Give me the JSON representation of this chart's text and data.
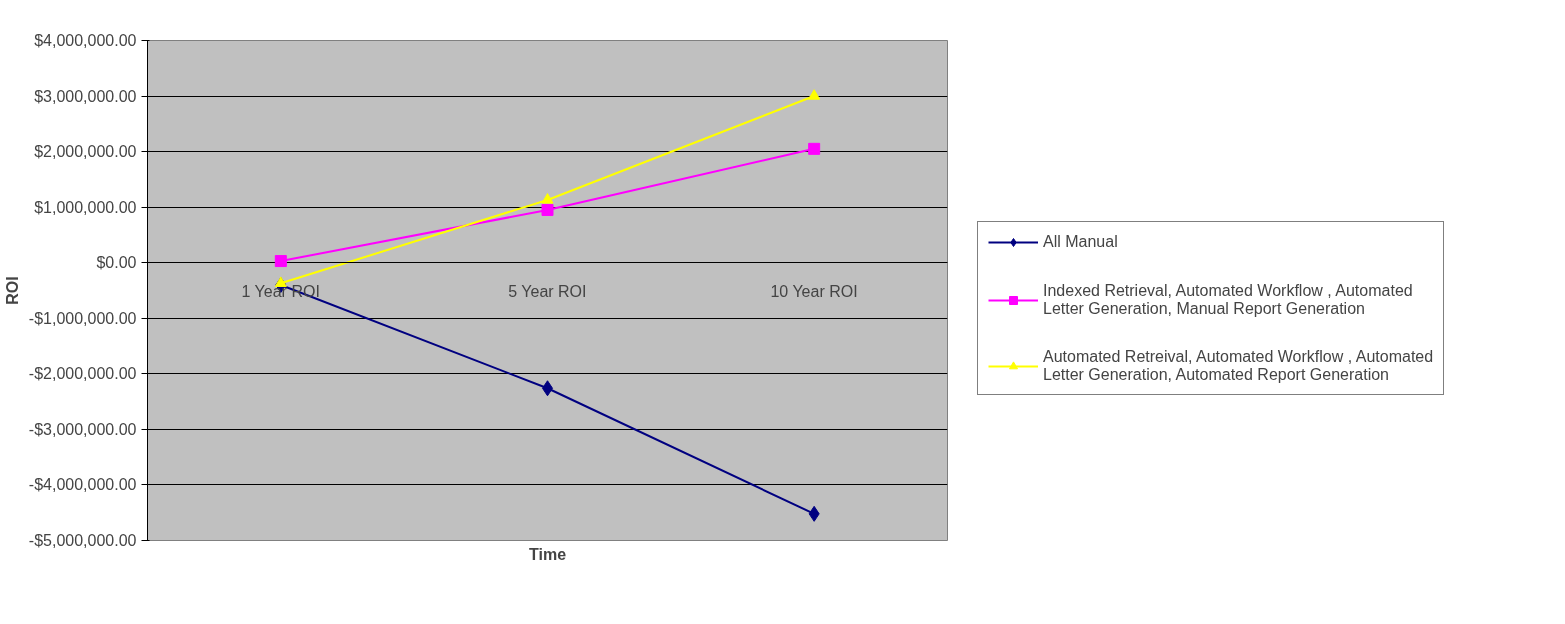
{
  "chart_data": {
    "type": "line",
    "xlabel": "Time",
    "ylabel": "ROI",
    "categories": [
      "1 Year ROI",
      "5 Year ROI",
      "10 Year ROI"
    ],
    "series": [
      {
        "name": "All Manual",
        "color": "#000080",
        "marker": "diamond",
        "values": [
          -400000,
          -2260000,
          -4520000
        ]
      },
      {
        "name": "Indexed Retrieval, Automated Workflow , Automated Letter Generation, Manual Report Generation",
        "color": "#ff00ff",
        "marker": "square",
        "values": [
          30000,
          950000,
          2050000
        ]
      },
      {
        "name": "Automated Retreival, Automated Workflow , Automated Letter Generation, Automated Report Generation",
        "color": "#ffff00",
        "marker": "triangle",
        "values": [
          -370000,
          1130000,
          3000000
        ]
      }
    ],
    "ylim": [
      -5000000,
      4000000
    ],
    "yticks": [
      {
        "value": -5000000,
        "label": "-$5,000,000.00"
      },
      {
        "value": -4000000,
        "label": "-$4,000,000.00"
      },
      {
        "value": -3000000,
        "label": "-$3,000,000.00"
      },
      {
        "value": -2000000,
        "label": "-$2,000,000.00"
      },
      {
        "value": -1000000,
        "label": "-$1,000,000.00"
      },
      {
        "value": 0,
        "label": "$0.00"
      },
      {
        "value": 1000000,
        "label": "$1,000,000.00"
      },
      {
        "value": 2000000,
        "label": "$2,000,000.00"
      },
      {
        "value": 3000000,
        "label": "$3,000,000.00"
      },
      {
        "value": 4000000,
        "label": "$4,000,000.00"
      }
    ],
    "grid": "y",
    "legend": "right",
    "line_style": "solid"
  }
}
